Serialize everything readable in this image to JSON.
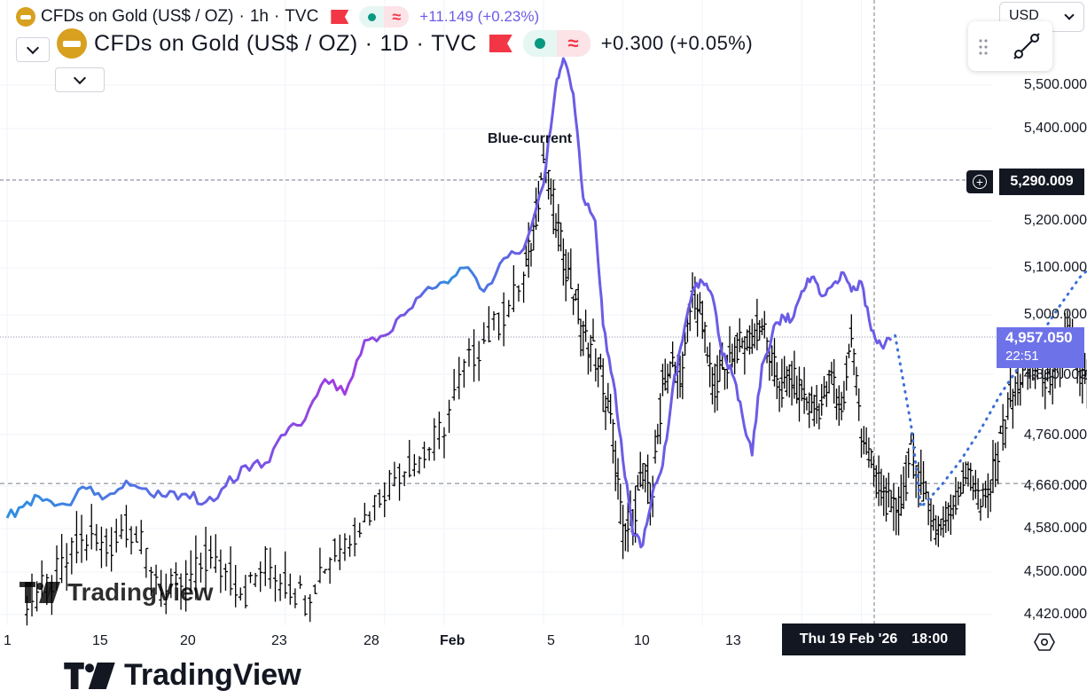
{
  "legend": {
    "small": {
      "title": "CFDs on Gold (US$ / OZ)",
      "interval": "1h",
      "source": "TVC",
      "change": "+11.149 (+0.23%)"
    },
    "big": {
      "title": "CFDs on Gold (US$ / OZ)",
      "interval": "1D",
      "source": "TVC",
      "change": "+0.300 (+0.05%)"
    },
    "separator": "·",
    "wave_glyph": "≈"
  },
  "currency": "USD",
  "annotation": "Blue-current",
  "crosshair": {
    "price": "5,290.009",
    "date": "Thu 19 Feb '26",
    "time": "18:00"
  },
  "last_price": {
    "value": "4,957.050",
    "countdown": "22:51"
  },
  "watermarks": {
    "top": "TradingView",
    "bottom": "TradingView"
  },
  "icons": [
    "gold-coin-icon",
    "flag-icon",
    "wave-icon",
    "chevron-down-icon",
    "drag-handle-icon",
    "trend-line-icon",
    "crosshair-plus-icon",
    "goto-realtime-icon",
    "tradingview-logo-icon"
  ],
  "colors": {
    "current_start": "#2f8fe0",
    "current_mid": "#6b5ce6",
    "current_end": "#a23be0",
    "black_candles": "#000000",
    "projection": "#3b6fd6",
    "last_price_bg": "#6e72e8",
    "flag": "#f23645",
    "status_green": "#089981",
    "coin": "#d7a01f"
  },
  "chart_data": {
    "type": "line",
    "y_axis_ticks": [
      "5,500.000",
      "5,400.000",
      "5,290.009",
      "5,200.000",
      "5,100.000",
      "5,000.000",
      "4,957.050",
      "4,880.000",
      "4,760.000",
      "4,660.000",
      "4,580.000",
      "4,500.000",
      "4,420.000"
    ],
    "y_axis_values": [
      5500,
      5400,
      5290,
      5200,
      5100,
      5000,
      4957,
      4880,
      4760,
      4660,
      4580,
      4500,
      4420
    ],
    "y_range": [
      4400,
      5580
    ],
    "x_axis_labels": [
      "1",
      "15",
      "20",
      "23",
      "28",
      "Feb",
      "5",
      "10",
      "13"
    ],
    "x_axis_days": [
      1,
      15,
      20,
      23,
      28,
      32,
      36,
      41,
      44
    ],
    "x_range": [
      1,
      55
    ],
    "grid": true,
    "series": [
      {
        "name": "Blue-current",
        "style": "line",
        "points": [
          [
            1,
            4600
          ],
          [
            2,
            4630
          ],
          [
            3,
            4635
          ],
          [
            4,
            4625
          ],
          [
            5,
            4655
          ],
          [
            6,
            4640
          ],
          [
            7,
            4670
          ],
          [
            8,
            4655
          ],
          [
            9,
            4640
          ],
          [
            10,
            4645
          ],
          [
            11,
            4630
          ],
          [
            12,
            4660
          ],
          [
            13,
            4700
          ],
          [
            14,
            4705
          ],
          [
            15,
            4760
          ],
          [
            16,
            4790
          ],
          [
            17,
            4870
          ],
          [
            18,
            4840
          ],
          [
            19,
            4950
          ],
          [
            20,
            4960
          ],
          [
            21,
            5000
          ],
          [
            22,
            5050
          ],
          [
            23,
            5070
          ],
          [
            24,
            5100
          ],
          [
            25,
            5050
          ],
          [
            26,
            5120
          ],
          [
            27,
            5140
          ],
          [
            28,
            5280
          ],
          [
            28.6,
            5490
          ],
          [
            29,
            5560
          ],
          [
            29.5,
            5480
          ],
          [
            30,
            5250
          ],
          [
            30.6,
            5200
          ],
          [
            31,
            4980
          ],
          [
            31.5,
            4870
          ],
          [
            32,
            4710
          ],
          [
            32.5,
            4570
          ],
          [
            33,
            4550
          ],
          [
            33.5,
            4650
          ],
          [
            34,
            4700
          ],
          [
            34.5,
            4850
          ],
          [
            35,
            4950
          ],
          [
            35.5,
            5050
          ],
          [
            36,
            5070
          ],
          [
            36.5,
            5040
          ],
          [
            37,
            4920
          ],
          [
            37.5,
            4880
          ],
          [
            38,
            4800
          ],
          [
            38.5,
            4720
          ],
          [
            39,
            4900
          ],
          [
            39.5,
            4960
          ],
          [
            40,
            5000
          ],
          [
            40.5,
            4990
          ],
          [
            41,
            5050
          ],
          [
            41.5,
            5080
          ],
          [
            42,
            5040
          ],
          [
            42.5,
            5060
          ],
          [
            43,
            5090
          ],
          [
            43.5,
            5050
          ],
          [
            44,
            5070
          ],
          [
            44.5,
            4970
          ],
          [
            45,
            4940
          ],
          [
            45.5,
            4950
          ]
        ]
      },
      {
        "name": "",
        "style": "candles",
        "points": [
          [
            2,
            4450
          ],
          [
            3,
            4470
          ],
          [
            4,
            4520
          ],
          [
            5,
            4560
          ],
          [
            6,
            4540
          ],
          [
            7,
            4590
          ],
          [
            8,
            4530
          ],
          [
            9,
            4460
          ],
          [
            10,
            4480
          ],
          [
            11,
            4520
          ],
          [
            12,
            4500
          ],
          [
            13,
            4460
          ],
          [
            14,
            4520
          ],
          [
            15,
            4480
          ],
          [
            16,
            4450
          ],
          [
            17,
            4520
          ],
          [
            18,
            4560
          ],
          [
            19,
            4600
          ],
          [
            20,
            4660
          ],
          [
            21,
            4700
          ],
          [
            22,
            4720
          ],
          [
            23,
            4780
          ],
          [
            24,
            4890
          ],
          [
            25,
            4950
          ],
          [
            26,
            5000
          ],
          [
            27,
            5080
          ],
          [
            27.5,
            5180
          ],
          [
            28,
            5330
          ],
          [
            28.5,
            5240
          ],
          [
            29,
            5120
          ],
          [
            29.5,
            5050
          ],
          [
            30,
            4960
          ],
          [
            30.5,
            4930
          ],
          [
            31,
            4860
          ],
          [
            31.5,
            4760
          ],
          [
            32,
            4560
          ],
          [
            32.5,
            4600
          ],
          [
            33,
            4680
          ],
          [
            33.5,
            4650
          ],
          [
            34,
            4860
          ],
          [
            34.5,
            4900
          ],
          [
            35,
            4880
          ],
          [
            35.5,
            5050
          ],
          [
            36,
            4980
          ],
          [
            36.5,
            4860
          ],
          [
            37,
            4880
          ],
          [
            37.5,
            4930
          ],
          [
            38,
            4940
          ],
          [
            38.5,
            4960
          ],
          [
            39,
            4980
          ],
          [
            39.5,
            4900
          ],
          [
            40,
            4850
          ],
          [
            40.5,
            4870
          ],
          [
            41,
            4840
          ],
          [
            41.5,
            4810
          ],
          [
            42,
            4820
          ],
          [
            42.5,
            4880
          ],
          [
            43,
            4800
          ],
          [
            43.5,
            4960
          ],
          [
            44,
            4770
          ],
          [
            44.5,
            4700
          ],
          [
            45,
            4660
          ],
          [
            45.5,
            4610
          ],
          [
            46,
            4630
          ],
          [
            46.5,
            4720
          ],
          [
            47,
            4680
          ],
          [
            47.5,
            4600
          ],
          [
            48,
            4580
          ],
          [
            48.5,
            4620
          ],
          [
            49,
            4660
          ],
          [
            49.5,
            4700
          ],
          [
            50,
            4620
          ],
          [
            50.5,
            4660
          ],
          [
            51,
            4740
          ],
          [
            51.5,
            4830
          ],
          [
            52,
            4870
          ],
          [
            52.5,
            4890
          ],
          [
            53,
            4900
          ],
          [
            53.5,
            4850
          ],
          [
            54,
            4920
          ],
          [
            54.5,
            4960
          ],
          [
            55,
            4880
          ],
          [
            55.5,
            4850
          ],
          [
            56,
            4860
          ],
          [
            56.5,
            4880
          ]
        ]
      },
      {
        "name": "",
        "style": "dotted",
        "points": [
          [
            45.7,
            4960
          ],
          [
            46.5,
            4780
          ],
          [
            47,
            4620
          ],
          [
            48,
            4660
          ],
          [
            49,
            4710
          ],
          [
            50,
            4770
          ],
          [
            51,
            4840
          ],
          [
            52,
            4900
          ],
          [
            53,
            4960
          ],
          [
            54,
            5020
          ],
          [
            55,
            5080
          ],
          [
            56,
            5120
          ]
        ]
      }
    ]
  }
}
